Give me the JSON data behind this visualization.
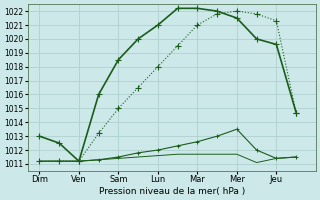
{
  "background_color": "#cce8e8",
  "grid_color": "#aacccc",
  "line_color": "#1a5c1a",
  "x_labels": [
    "Dim",
    "Ven",
    "Sam",
    "Lun",
    "Mar",
    "Mer",
    "Jeu"
  ],
  "xlabel": "Pression niveau de la mer( hPa )",
  "ylim": [
    1010.5,
    1022.5
  ],
  "yticks": [
    1011,
    1012,
    1013,
    1014,
    1015,
    1016,
    1017,
    1018,
    1019,
    1020,
    1021,
    1022
  ],
  "series1_x": [
    0,
    0.5,
    1,
    1.5,
    2,
    2.5,
    3,
    3.5,
    4,
    4.5,
    5,
    5.5,
    6,
    6.5
  ],
  "series1_y": [
    1013.0,
    1012.5,
    1011.2,
    1016.0,
    1018.5,
    1020.0,
    1021.0,
    1022.2,
    1022.2,
    1022.0,
    1021.5,
    1020.0,
    1019.6,
    1014.7
  ],
  "series2_x": [
    0,
    0.5,
    1,
    1.5,
    2,
    2.5,
    3,
    3.5,
    4,
    4.5,
    5,
    5.5,
    6,
    6.5
  ],
  "series2_y": [
    1011.2,
    1011.2,
    1011.2,
    1013.2,
    1015.0,
    1016.5,
    1018.0,
    1019.5,
    1021.0,
    1021.8,
    1022.0,
    1021.8,
    1021.3,
    1014.7
  ],
  "series3_x": [
    0,
    0.5,
    1,
    1.5,
    2,
    2.5,
    3,
    3.5,
    4,
    4.5,
    5,
    5.5,
    6,
    6.5
  ],
  "series3_y": [
    1011.2,
    1011.2,
    1011.2,
    1011.3,
    1011.5,
    1011.8,
    1012.0,
    1012.3,
    1012.6,
    1013.0,
    1013.5,
    1012.0,
    1011.4,
    1011.5
  ],
  "series4_x": [
    0,
    0.5,
    1,
    1.5,
    2,
    2.5,
    3,
    3.5,
    4,
    4.5,
    5,
    5.5,
    6,
    6.5
  ],
  "series4_y": [
    1011.2,
    1011.2,
    1011.2,
    1011.3,
    1011.4,
    1011.5,
    1011.6,
    1011.7,
    1011.7,
    1011.7,
    1011.7,
    1011.1,
    1011.4,
    1011.5
  ],
  "xtick_positions": [
    0,
    1,
    2,
    3,
    4,
    5,
    6
  ],
  "xlim": [
    -0.3,
    7.0
  ]
}
